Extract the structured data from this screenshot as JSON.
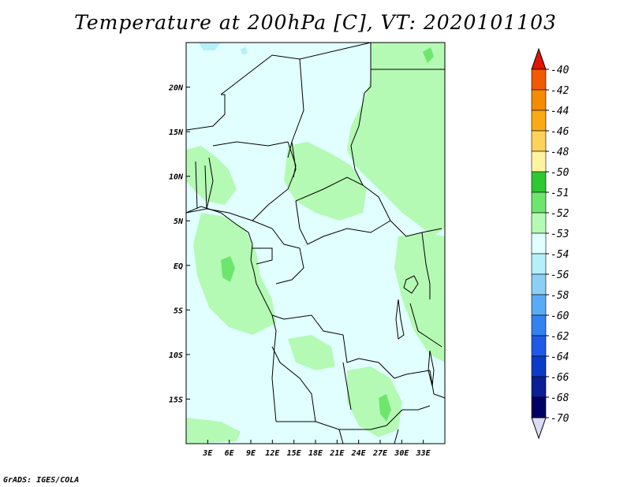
{
  "title": "Temperature at 200hPa [C], VT: 2020101103",
  "credit": "GrADS: IGES/COLA",
  "map": {
    "lon_range": [
      0,
      36
    ],
    "lat_range": [
      -20,
      25
    ],
    "lat_ticks": [
      {
        "value": 20,
        "label": "20N"
      },
      {
        "value": 15,
        "label": "15N"
      },
      {
        "value": 10,
        "label": "10N"
      },
      {
        "value": 5,
        "label": "5N"
      },
      {
        "value": 0,
        "label": "EQ"
      },
      {
        "value": -5,
        "label": "5S"
      },
      {
        "value": -10,
        "label": "10S"
      },
      {
        "value": -15,
        "label": "15S"
      }
    ],
    "lon_ticks": [
      {
        "value": 3,
        "label": "3E"
      },
      {
        "value": 6,
        "label": "6E"
      },
      {
        "value": 9,
        "label": "9E"
      },
      {
        "value": 12,
        "label": "12E"
      },
      {
        "value": 15,
        "label": "15E"
      },
      {
        "value": 18,
        "label": "18E"
      },
      {
        "value": 21,
        "label": "21E"
      },
      {
        "value": 24,
        "label": "24E"
      },
      {
        "value": 27,
        "label": "27E"
      },
      {
        "value": 30,
        "label": "30E"
      },
      {
        "value": 33,
        "label": "33E"
      }
    ]
  },
  "colorbar": {
    "labels": [
      "-40",
      "-42",
      "-44",
      "-46",
      "-48",
      "-50",
      "-51",
      "-52",
      "-53",
      "-54",
      "-56",
      "-58",
      "-60",
      "-62",
      "-64",
      "-66",
      "-68",
      "-70"
    ],
    "colors": [
      "#e11400",
      "#f05a00",
      "#f58c00",
      "#faaa14",
      "#fcd25a",
      "#fff5a0",
      "#30c830",
      "#6ee66e",
      "#b4fab4",
      "#e1ffff",
      "#b4f0fa",
      "#8ccff5",
      "#5aabf5",
      "#3282f0",
      "#1e5ae6",
      "#0a3cc8",
      "#0a1e96",
      "#000064"
    ],
    "top_arrow_color": "#e11400",
    "bottom_arrow_color": "#dcdcf5"
  },
  "fill_colors": {
    "background": "#e1ffff",
    "band_53": "#b4fab4",
    "band_52": "#6ee66e",
    "band_56": "#b4f0fa"
  }
}
